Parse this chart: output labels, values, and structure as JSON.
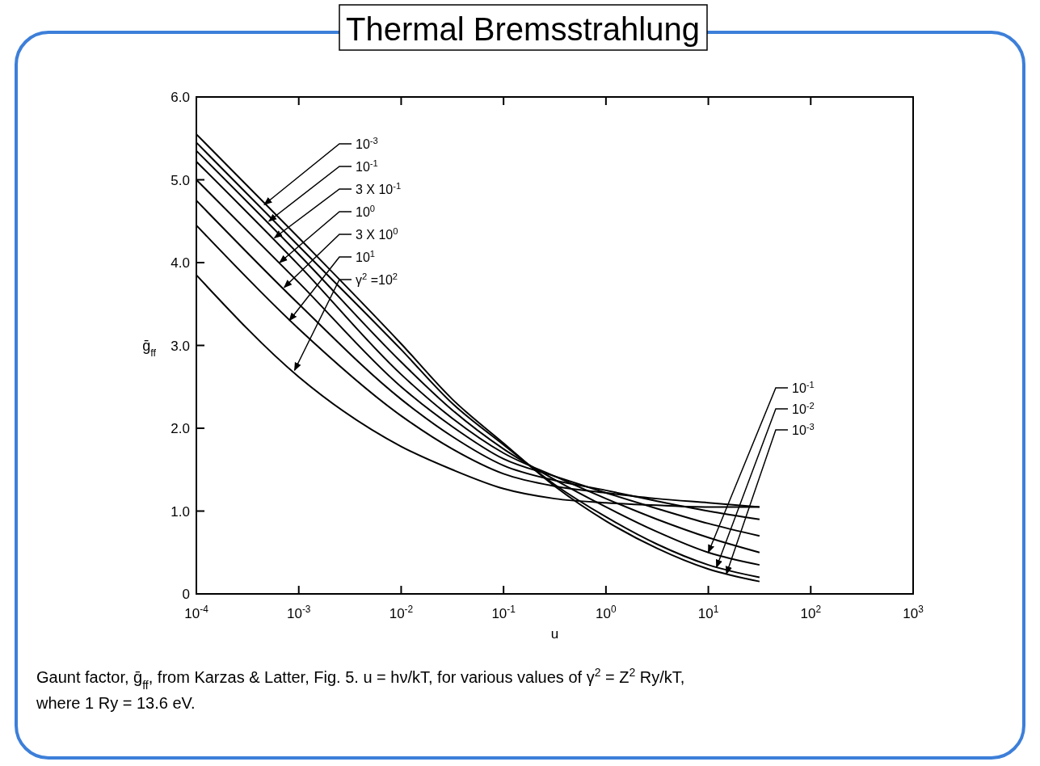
{
  "chart_data": {
    "type": "line",
    "title": "Thermal Bremsstrahlung",
    "xlabel": "u",
    "ylabel": "ḡ$_{ff}$",
    "log": "x",
    "grid": false,
    "xlim": [
      0.0001,
      1000
    ],
    "ylim": [
      0,
      6
    ],
    "xticks": [
      {
        "value": 0.0001,
        "label": "10$^{-4}$"
      },
      {
        "value": 0.001,
        "label": "10$^{-3}$"
      },
      {
        "value": 0.01,
        "label": "10$^{-2}$"
      },
      {
        "value": 0.1,
        "label": "10$^{-1}$"
      },
      {
        "value": 1,
        "label": "10$^{0}$"
      },
      {
        "value": 10,
        "label": "10$^{1}$"
      },
      {
        "value": 100,
        "label": "10$^{2}$"
      },
      {
        "value": 1000,
        "label": "10$^{3}$"
      }
    ],
    "yticks": [
      0,
      {
        "value": 1,
        "label": "1.0"
      },
      {
        "value": 2,
        "label": "2.0"
      },
      {
        "value": 3,
        "label": "3.0"
      },
      {
        "value": 4,
        "label": "4.0"
      },
      {
        "value": 5,
        "label": "5.0"
      },
      {
        "value": 6,
        "label": "6.0"
      }
    ],
    "x": [
      0.0001,
      0.001,
      0.01,
      0.0316,
      0.1,
      0.316,
      1,
      3.16,
      10,
      31.6
    ],
    "series": [
      {
        "color": "#000000",
        "values": [
          5.55,
          4.3,
          3.02,
          2.35,
          1.82,
          1.3,
          0.88,
          0.55,
          0.3,
          0.15
        ]
      },
      {
        "color": "#000000",
        "values": [
          5.45,
          4.2,
          2.95,
          2.3,
          1.8,
          1.32,
          0.93,
          0.6,
          0.35,
          0.2
        ]
      },
      {
        "color": "#000000",
        "values": [
          5.35,
          4.1,
          2.8,
          2.22,
          1.75,
          1.38,
          1.05,
          0.75,
          0.5,
          0.35
        ]
      },
      {
        "color": "#000000",
        "values": [
          5.22,
          3.97,
          2.65,
          2.12,
          1.7,
          1.42,
          1.15,
          0.9,
          0.68,
          0.5
        ]
      },
      {
        "color": "#000000",
        "values": [
          5.0,
          3.76,
          2.5,
          2.02,
          1.63,
          1.42,
          1.22,
          1.03,
          0.85,
          0.7
        ]
      },
      {
        "color": "#000000",
        "values": [
          4.75,
          3.5,
          2.35,
          1.9,
          1.55,
          1.37,
          1.25,
          1.12,
          1.0,
          0.9
        ]
      },
      {
        "color": "#000000",
        "values": [
          4.45,
          3.2,
          2.15,
          1.75,
          1.45,
          1.3,
          1.22,
          1.15,
          1.1,
          1.05
        ]
      },
      {
        "color": "#000000",
        "values": [
          3.85,
          2.62,
          1.78,
          1.5,
          1.27,
          1.15,
          1.1,
          1.07,
          1.05,
          1.05
        ]
      }
    ],
    "annotations": [
      {
        "text": "10$^{-3}$",
        "x": 0.00046,
        "y": 4.7
      },
      {
        "text": "10$^{-1}$",
        "x": 0.00051,
        "y": 4.5
      },
      {
        "text": "3 X 10$^{-1}$",
        "x": 0.00058,
        "y": 4.3
      },
      {
        "text": "10$^{0}$",
        "x": 0.00065,
        "y": 4.0
      },
      {
        "text": "3 X 10$^{0}$",
        "x": 0.00072,
        "y": 3.7
      },
      {
        "text": "10$^{1}$",
        "x": 0.00081,
        "y": 3.3
      },
      {
        "text": "γ$^{2}$ =10$^{2}$",
        "x": 0.00091,
        "y": 2.7
      },
      {
        "text": "10$^{-1}$",
        "x": 10,
        "y": 0.5
      },
      {
        "text": "10$^{-2}$",
        "x": 12,
        "y": 0.32
      },
      {
        "text": "10$^{-3}$",
        "x": 15,
        "y": 0.24
      },
      "Gaunt factor, ḡ$_{ff}$, from Karzas & Latter, Fig. 5. u = hν/kT, for various values of γ$^{2}$ = Z$^{2}$ Ry/kT, where 1 Ry = 13.6 eV."
    ]
  }
}
